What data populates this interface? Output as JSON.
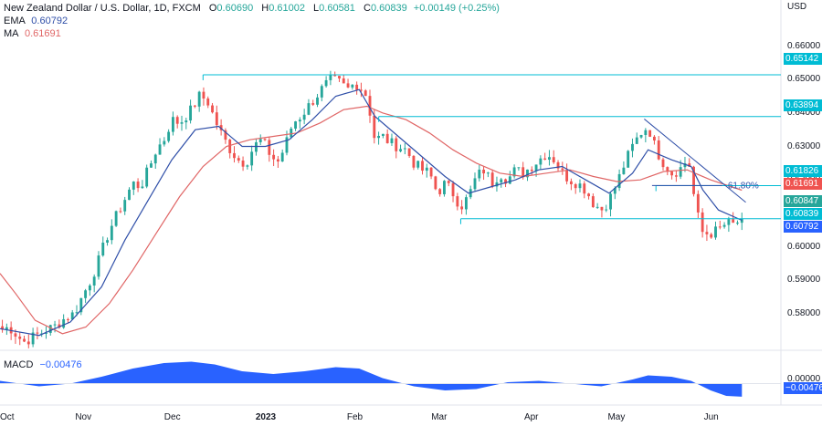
{
  "header": {
    "symbol": "New Zealand Dollar / U.S. Dollar, 1D, FXCM",
    "o_label": "O",
    "o": "0.60690",
    "h_label": "H",
    "h": "0.61002",
    "l_label": "L",
    "l": "0.60581",
    "c_label": "C",
    "c": "0.60839",
    "change": "+0.00149 (+0.25%)",
    "ema_label": "EMA",
    "ema": "0.60792",
    "ma_label": "MA",
    "ma": "0.61691",
    "currency": "USD"
  },
  "macd": {
    "label": "MACD",
    "value": "−0.00476",
    "zero": "0.00000",
    "tag": "−0.00476"
  },
  "colors": {
    "up": "#26a69a",
    "down": "#ef5350",
    "ema": "#2f4fa8",
    "ma": "#e06666",
    "level": "#00bcd4",
    "trend": "#2f4fa8",
    "macd": "#2962ff",
    "tag_cyan": "#00bcd4",
    "tag_red": "#ef5350",
    "tag_blue": "#2962ff",
    "tag_teal": "#26a69a"
  },
  "chart_data": {
    "type": "candlestick",
    "title": "New Zealand Dollar / U.S. Dollar, 1D, FXCM",
    "ylim": [
      0.5715,
      0.6705
    ],
    "y_ticks": [
      "0.66000",
      "0.65000",
      "0.64000",
      "0.63000",
      "0.62000",
      "0.61000",
      "0.60000",
      "0.59000",
      "0.58000"
    ],
    "x_ticks": [
      "Oct",
      "Nov",
      "Dec",
      "2023",
      "Feb",
      "Mar",
      "Apr",
      "May",
      "Jun"
    ],
    "overlay_tags": [
      {
        "value": 0.65142,
        "label": "0.65142",
        "color": "tag_cyan"
      },
      {
        "value": 0.63894,
        "label": "0.63894",
        "color": "tag_cyan"
      },
      {
        "value": 0.61826,
        "label": "0.61826",
        "color": "tag_cyan"
      },
      {
        "value": 0.61691,
        "label": "0.61691",
        "color": "tag_red"
      },
      {
        "value": 0.60847,
        "label": "0.60847",
        "color": "tag_teal"
      },
      {
        "value": 0.60839,
        "label": "0.60839",
        "color": "tag_cyan"
      },
      {
        "value": 0.60792,
        "label": "0.60792",
        "color": "tag_blue"
      }
    ],
    "levels": [
      {
        "value": 0.65142,
        "from": 0.26,
        "to": 1.0
      },
      {
        "value": 0.63894,
        "from": 0.485,
        "to": 1.0
      },
      {
        "value": 0.61826,
        "from": 0.84,
        "to": 1.0
      },
      {
        "value": 0.60839,
        "from": 0.59,
        "to": 1.0
      }
    ],
    "fib": {
      "label": "61.80%",
      "value": 0.6183
    },
    "trendline": {
      "from": [
        0.825,
        0.6382
      ],
      "to": [
        0.955,
        0.6133
      ]
    },
    "close_path": [
      [
        0.0,
        0.575
      ],
      [
        0.012,
        0.576
      ],
      [
        0.03,
        0.5715
      ],
      [
        0.05,
        0.574
      ],
      [
        0.07,
        0.5762
      ],
      [
        0.085,
        0.579
      ],
      [
        0.095,
        0.58
      ],
      [
        0.105,
        0.585
      ],
      [
        0.115,
        0.5895
      ],
      [
        0.125,
        0.595
      ],
      [
        0.14,
        0.605
      ],
      [
        0.155,
        0.612
      ],
      [
        0.17,
        0.619
      ],
      [
        0.18,
        0.618
      ],
      [
        0.19,
        0.623
      ],
      [
        0.2,
        0.629
      ],
      [
        0.21,
        0.632
      ],
      [
        0.22,
        0.638
      ],
      [
        0.23,
        0.637
      ],
      [
        0.245,
        0.641
      ],
      [
        0.255,
        0.645
      ],
      [
        0.265,
        0.644
      ],
      [
        0.275,
        0.638
      ],
      [
        0.285,
        0.633
      ],
      [
        0.295,
        0.629
      ],
      [
        0.305,
        0.626
      ],
      [
        0.315,
        0.625
      ],
      [
        0.325,
        0.63
      ],
      [
        0.335,
        0.632
      ],
      [
        0.345,
        0.628
      ],
      [
        0.355,
        0.625
      ],
      [
        0.365,
        0.63
      ],
      [
        0.375,
        0.637
      ],
      [
        0.385,
        0.639
      ],
      [
        0.395,
        0.642
      ],
      [
        0.405,
        0.645
      ],
      [
        0.415,
        0.648
      ],
      [
        0.425,
        0.65
      ],
      [
        0.435,
        0.649
      ],
      [
        0.445,
        0.647
      ],
      [
        0.455,
        0.649
      ],
      [
        0.462,
        0.6475
      ],
      [
        0.47,
        0.645
      ],
      [
        0.48,
        0.632
      ],
      [
        0.49,
        0.633
      ],
      [
        0.5,
        0.631
      ],
      [
        0.51,
        0.63
      ],
      [
        0.52,
        0.629
      ],
      [
        0.53,
        0.625
      ],
      [
        0.54,
        0.623
      ],
      [
        0.55,
        0.622
      ],
      [
        0.56,
        0.616
      ],
      [
        0.57,
        0.619
      ],
      [
        0.58,
        0.616
      ],
      [
        0.59,
        0.612
      ],
      [
        0.6,
        0.615
      ],
      [
        0.61,
        0.621
      ],
      [
        0.62,
        0.623
      ],
      [
        0.63,
        0.619
      ],
      [
        0.64,
        0.622
      ],
      [
        0.65,
        0.62
      ],
      [
        0.66,
        0.623
      ],
      [
        0.67,
        0.622
      ],
      [
        0.68,
        0.624
      ],
      [
        0.69,
        0.626
      ],
      [
        0.7,
        0.628
      ],
      [
        0.71,
        0.626
      ],
      [
        0.72,
        0.622
      ],
      [
        0.73,
        0.62
      ],
      [
        0.74,
        0.619
      ],
      [
        0.75,
        0.617
      ],
      [
        0.76,
        0.613
      ],
      [
        0.77,
        0.611
      ],
      [
        0.78,
        0.614
      ],
      [
        0.79,
        0.619
      ],
      [
        0.8,
        0.625
      ],
      [
        0.81,
        0.63
      ],
      [
        0.82,
        0.634
      ],
      [
        0.83,
        0.636
      ],
      [
        0.84,
        0.629
      ],
      [
        0.85,
        0.625
      ],
      [
        0.86,
        0.622
      ],
      [
        0.87,
        0.623
      ],
      [
        0.88,
        0.626
      ],
      [
        0.885,
        0.623
      ],
      [
        0.89,
        0.612
      ],
      [
        0.895,
        0.608
      ],
      [
        0.9,
        0.604
      ],
      [
        0.91,
        0.604
      ],
      [
        0.92,
        0.605
      ],
      [
        0.93,
        0.607
      ],
      [
        0.94,
        0.6065
      ],
      [
        0.95,
        0.6084
      ]
    ],
    "ema_path": [
      [
        0.0,
        0.5755
      ],
      [
        0.05,
        0.5735
      ],
      [
        0.09,
        0.5775
      ],
      [
        0.13,
        0.588
      ],
      [
        0.16,
        0.602
      ],
      [
        0.19,
        0.614
      ],
      [
        0.22,
        0.626
      ],
      [
        0.25,
        0.635
      ],
      [
        0.28,
        0.636
      ],
      [
        0.31,
        0.63
      ],
      [
        0.34,
        0.63
      ],
      [
        0.37,
        0.632
      ],
      [
        0.4,
        0.638
      ],
      [
        0.43,
        0.645
      ],
      [
        0.46,
        0.647
      ],
      [
        0.48,
        0.639
      ],
      [
        0.51,
        0.633
      ],
      [
        0.54,
        0.627
      ],
      [
        0.57,
        0.621
      ],
      [
        0.6,
        0.616
      ],
      [
        0.63,
        0.618
      ],
      [
        0.66,
        0.62
      ],
      [
        0.69,
        0.623
      ],
      [
        0.72,
        0.624
      ],
      [
        0.75,
        0.62
      ],
      [
        0.78,
        0.616
      ],
      [
        0.81,
        0.622
      ],
      [
        0.83,
        0.629
      ],
      [
        0.86,
        0.626
      ],
      [
        0.885,
        0.624
      ],
      [
        0.9,
        0.617
      ],
      [
        0.92,
        0.611
      ],
      [
        0.95,
        0.6079
      ]
    ],
    "ma_path": [
      [
        0.0,
        0.592
      ],
      [
        0.02,
        0.586
      ],
      [
        0.045,
        0.578
      ],
      [
        0.08,
        0.574
      ],
      [
        0.11,
        0.576
      ],
      [
        0.14,
        0.583
      ],
      [
        0.17,
        0.593
      ],
      [
        0.2,
        0.604
      ],
      [
        0.23,
        0.615
      ],
      [
        0.26,
        0.624
      ],
      [
        0.29,
        0.63
      ],
      [
        0.32,
        0.632
      ],
      [
        0.35,
        0.633
      ],
      [
        0.38,
        0.634
      ],
      [
        0.41,
        0.637
      ],
      [
        0.44,
        0.641
      ],
      [
        0.47,
        0.642
      ],
      [
        0.49,
        0.64
      ],
      [
        0.52,
        0.638
      ],
      [
        0.55,
        0.634
      ],
      [
        0.58,
        0.629
      ],
      [
        0.61,
        0.625
      ],
      [
        0.64,
        0.622
      ],
      [
        0.67,
        0.621
      ],
      [
        0.7,
        0.622
      ],
      [
        0.73,
        0.623
      ],
      [
        0.76,
        0.621
      ],
      [
        0.79,
        0.6195
      ],
      [
        0.82,
        0.62
      ],
      [
        0.85,
        0.6225
      ],
      [
        0.88,
        0.623
      ],
      [
        0.91,
        0.62
      ],
      [
        0.95,
        0.6169
      ]
    ],
    "macd_path": [
      [
        0.0,
        0.001
      ],
      [
        0.05,
        -0.001
      ],
      [
        0.09,
        0.0
      ],
      [
        0.13,
        0.0025
      ],
      [
        0.17,
        0.0055
      ],
      [
        0.21,
        0.0075
      ],
      [
        0.245,
        0.008
      ],
      [
        0.275,
        0.007
      ],
      [
        0.31,
        0.0045
      ],
      [
        0.35,
        0.0035
      ],
      [
        0.39,
        0.0045
      ],
      [
        0.43,
        0.006
      ],
      [
        0.46,
        0.0055
      ],
      [
        0.49,
        0.002
      ],
      [
        0.53,
        -0.001
      ],
      [
        0.57,
        -0.0025
      ],
      [
        0.61,
        -0.002
      ],
      [
        0.65,
        0.0005
      ],
      [
        0.69,
        0.001
      ],
      [
        0.73,
        0.0
      ],
      [
        0.77,
        -0.001
      ],
      [
        0.81,
        0.0015
      ],
      [
        0.83,
        0.003
      ],
      [
        0.86,
        0.0025
      ],
      [
        0.885,
        0.001
      ],
      [
        0.91,
        -0.0025
      ],
      [
        0.93,
        -0.0045
      ],
      [
        0.95,
        -0.0048
      ]
    ],
    "macd_ylim": [
      -0.0065,
      0.0095
    ]
  }
}
